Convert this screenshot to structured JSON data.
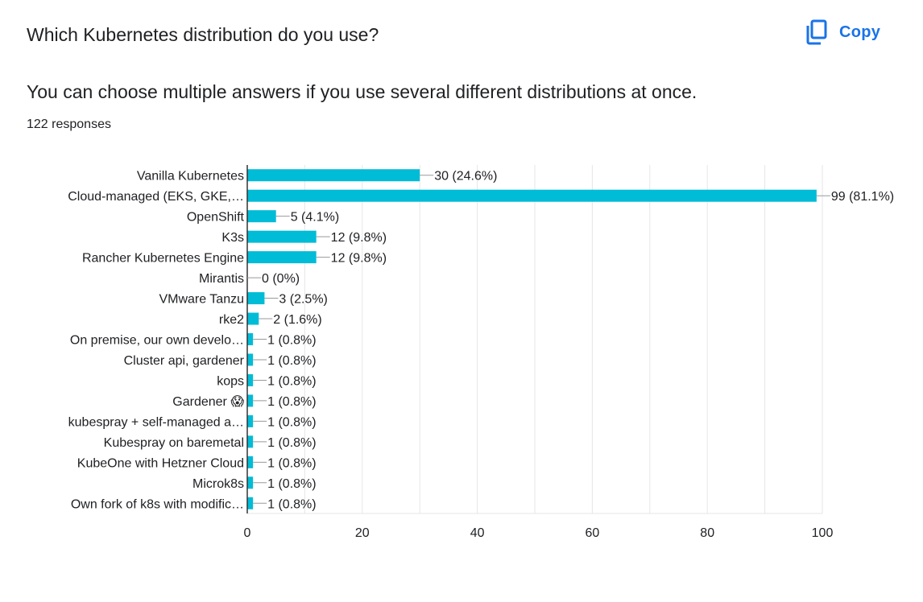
{
  "question": {
    "title": "Which Kubernetes distribution do you use?",
    "description": "You can choose multiple answers if you use several different distributions at once.",
    "response_count": "122 responses"
  },
  "toolbar": {
    "copy_label": "Copy",
    "copy_icon": "copy-icon"
  },
  "colors": {
    "bar": "#00bcd6",
    "accent": "#1a73e8",
    "grid": "#e6e6e6",
    "axis": "#333333",
    "text": "#202124"
  },
  "chart_data": {
    "type": "bar",
    "orientation": "horizontal",
    "categories": [
      "Vanilla Kubernetes",
      "Cloud-managed (EKS, GKE,…",
      "OpenShift",
      "K3s",
      "Rancher Kubernetes Engine",
      "Mirantis",
      "VMware Tanzu",
      "rke2",
      "On premise, our own develo…",
      "Cluster api, gardener",
      "kops",
      "Gardener 😱",
      "kubespray + self-managed a…",
      "Kubespray on baremetal",
      "KubeOne with Hetzner Cloud",
      "Microk8s",
      "Own fork of k8s with modific…"
    ],
    "values": [
      30,
      99,
      5,
      12,
      12,
      0,
      3,
      2,
      1,
      1,
      1,
      1,
      1,
      1,
      1,
      1,
      1
    ],
    "data_labels": [
      "30 (24.6%)",
      "99 (81.1%)",
      "5 (4.1%)",
      "12 (9.8%)",
      "12 (9.8%)",
      "0 (0%)",
      "3 (2.5%)",
      "2 (1.6%)",
      "1 (0.8%)",
      "1 (0.8%)",
      "1 (0.8%)",
      "1 (0.8%)",
      "1 (0.8%)",
      "1 (0.8%)",
      "1 (0.8%)",
      "1 (0.8%)",
      "1 (0.8%)"
    ],
    "xlim": [
      0,
      100
    ],
    "xticks": [
      0,
      20,
      40,
      60,
      80,
      100
    ],
    "grid": true,
    "legend": "none"
  }
}
